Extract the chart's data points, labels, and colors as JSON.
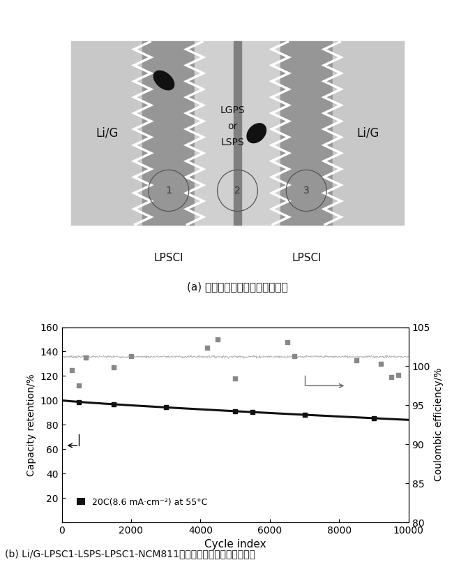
{
  "fig_width": 6.81,
  "fig_height": 8.22,
  "bg_color": "#ffffff",
  "schematic": {
    "bg_light": "#c8c8c8",
    "bg_left_right": "#c0c0c0",
    "lpsci_gray": "#969696",
    "center_light": "#d2d2d2",
    "center_dark_line": "#888888",
    "lig_label_left": "Li/G",
    "lig_label_right": "Li/G",
    "center_label_line1": "LGPS",
    "center_label_line2": "or",
    "center_label_line3": "LSPS",
    "lpsci_left": "LPSCl",
    "lpsci_right": "LPSCl",
    "caption_a": "(a) 三明治结构电解质设计示意图"
  },
  "plot": {
    "ce_scatter_x": [
      300,
      500,
      700,
      1500,
      2000,
      4200,
      4500,
      5000,
      6500,
      6700,
      8500,
      9200,
      9500,
      9700
    ],
    "ce_scatter_y": [
      125,
      112,
      135,
      127,
      136,
      143,
      150,
      118,
      148,
      136,
      133,
      130,
      119,
      121
    ],
    "xlim": [
      0,
      10000
    ],
    "ylim_left": [
      0,
      160
    ],
    "ylim_right": [
      80,
      105
    ],
    "yticks_left": [
      20,
      40,
      60,
      80,
      100,
      120,
      140,
      160
    ],
    "yticks_right": [
      80,
      85,
      90,
      95,
      100,
      105
    ],
    "xticks": [
      0,
      2000,
      4000,
      6000,
      8000,
      10000
    ],
    "xlabel": "Cycle index",
    "ylabel_left": "Capacity retention/%",
    "ylabel_right": "Coulombic efficiency/%",
    "legend_text": "20C(8.6 mA·cm⁻²) at 55°C",
    "caption_b": "(b) Li/G-LPSC1-LSPS-LPSC1-NCM811全固态电池长循环充放电曲线",
    "capacity_color": "#111111",
    "ce_color": "#888888"
  }
}
